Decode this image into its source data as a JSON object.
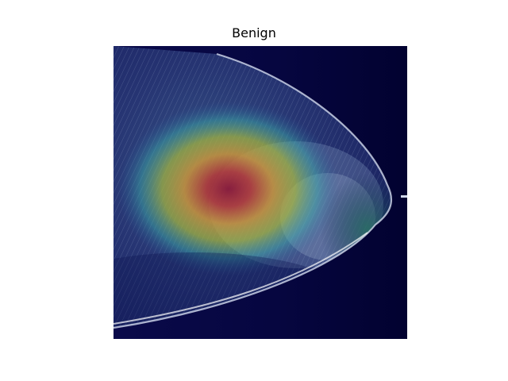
{
  "figure": {
    "title": "Benign"
  },
  "image": {
    "description_icon": "mammogram-heatmap-overlay-image",
    "background_color": "#030338",
    "heatmap_colors": [
      "#0b0b5a",
      "#1f6fa8",
      "#3bc0c0",
      "#d8d040",
      "#d06030",
      "#8a1a3a"
    ]
  }
}
